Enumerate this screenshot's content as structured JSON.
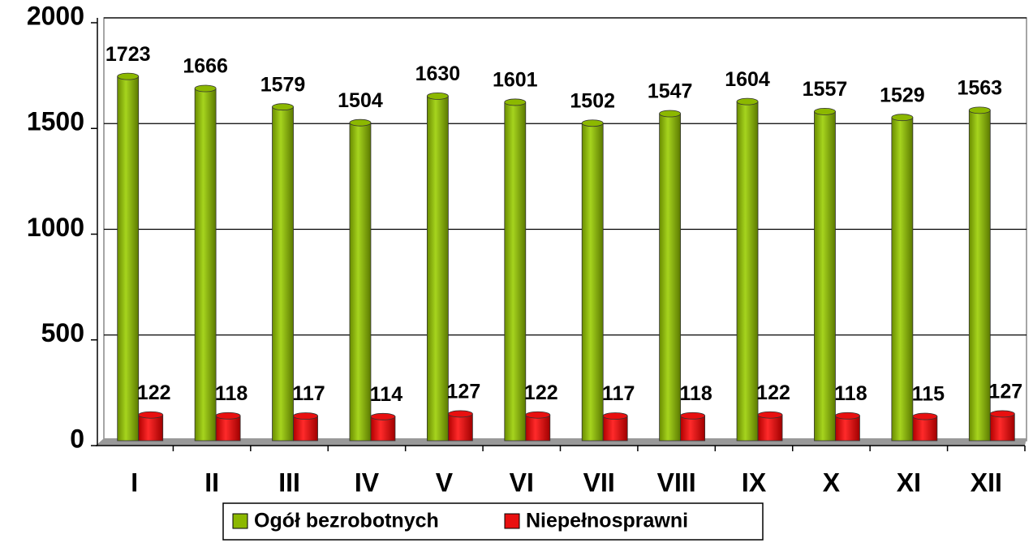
{
  "chart_data": {
    "type": "bar",
    "categories": [
      "I",
      "II",
      "III",
      "IV",
      "V",
      "VI",
      "VII",
      "VIII",
      "IX",
      "X",
      "XI",
      "XII"
    ],
    "series": [
      {
        "name": "Ogół bezrobotnych",
        "color": "#8cb800",
        "values": [
          1723,
          1666,
          1579,
          1504,
          1630,
          1601,
          1502,
          1547,
          1604,
          1557,
          1529,
          1563
        ]
      },
      {
        "name": "Niepełnosprawni",
        "color": "#e81010",
        "values": [
          122,
          118,
          117,
          114,
          127,
          122,
          117,
          118,
          122,
          118,
          115,
          127
        ]
      }
    ],
    "ylim": [
      0,
      2000
    ],
    "yticks": [
      0,
      500,
      1000,
      1500,
      2000
    ],
    "grid": true,
    "legend": "bottom"
  }
}
